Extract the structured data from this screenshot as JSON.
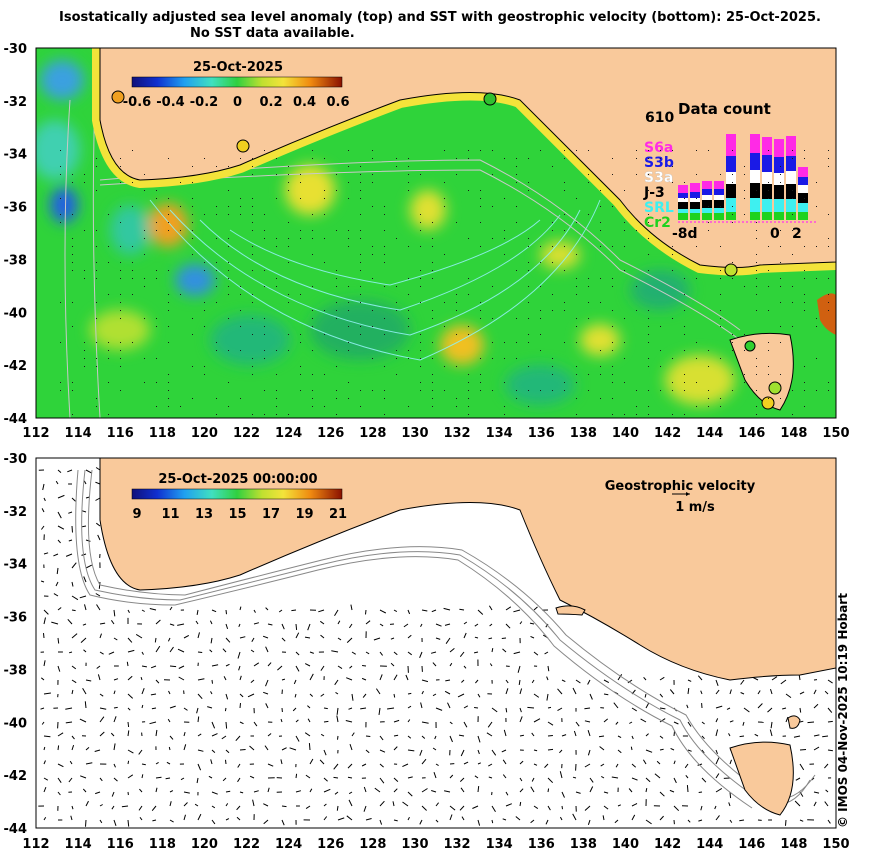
{
  "title": {
    "line1": "Isostatically adjusted sea level anomaly (top) and SST with geostrophic velocity (bottom): 25-Oct-2025.",
    "line2": "No SST data available."
  },
  "top_panel": {
    "colorbar_title": "25-Oct-2025",
    "colorbar_ticks": [
      "-0.6",
      "-0.4",
      "-0.2",
      "0",
      "0.2",
      "0.4",
      "0.6"
    ],
    "colorbar_range": [
      -0.6,
      0.6
    ],
    "colors": {
      "land": "#f9c99b",
      "ocean_mid": "#2fd33a",
      "coast_band": "#f3e33a"
    }
  },
  "inset": {
    "title": "Data count",
    "max_label": "610",
    "x_start_label": "-8d",
    "x_zero_label": "0",
    "x_end_label": "2",
    "missions": [
      {
        "name": "S6a",
        "color": "#ff2ae6"
      },
      {
        "name": "S3b",
        "color": "#1a1ae6"
      },
      {
        "name": "S3a",
        "color": "#ffffff"
      },
      {
        "name": "J-3",
        "color": "#000000"
      },
      {
        "name": "SRL",
        "color": "#3ef0f0"
      },
      {
        "name": "Cr2",
        "color": "#1ed21e"
      }
    ],
    "bars": [
      [
        0.08,
        0.05,
        0.04,
        0.07,
        0.04,
        0.07
      ],
      [
        0.09,
        0.06,
        0.04,
        0.07,
        0.04,
        0.07
      ],
      [
        0.08,
        0.06,
        0.05,
        0.08,
        0.05,
        0.07
      ],
      [
        0.08,
        0.06,
        0.05,
        0.08,
        0.05,
        0.07
      ],
      [
        0.22,
        0.16,
        0.12,
        0.14,
        0.14,
        0.08
      ],
      [
        0.0,
        0.0,
        0.0,
        0.0,
        0.0,
        0.0
      ],
      [
        0.19,
        0.17,
        0.13,
        0.15,
        0.14,
        0.08
      ],
      [
        0.18,
        0.17,
        0.12,
        0.15,
        0.13,
        0.08
      ],
      [
        0.18,
        0.16,
        0.12,
        0.14,
        0.13,
        0.08
      ],
      [
        0.2,
        0.15,
        0.13,
        0.15,
        0.13,
        0.08
      ],
      [
        0.1,
        0.08,
        0.08,
        0.1,
        0.09,
        0.08
      ]
    ]
  },
  "bottom_panel": {
    "colorbar_title": "25-Oct-2025 00:00:00",
    "colorbar_ticks": [
      "9",
      "11",
      "13",
      "15",
      "17",
      "19",
      "21"
    ],
    "colorbar_range": [
      9,
      21
    ],
    "velocity_legend_title": "Geostrophic velocity",
    "velocity_legend_scale": "1 m/s"
  },
  "axes": {
    "lon_ticks": [
      "112",
      "114",
      "116",
      "118",
      "120",
      "122",
      "124",
      "126",
      "128",
      "130",
      "132",
      "134",
      "136",
      "138",
      "140",
      "142",
      "144",
      "146",
      "148",
      "150"
    ],
    "lat_ticks": [
      "-30",
      "-32",
      "-34",
      "-36",
      "-38",
      "-40",
      "-42",
      "-44"
    ],
    "lon_range": [
      112,
      150
    ],
    "lat_range": [
      -44,
      -30
    ]
  },
  "credit": "© IMOS 04-Nov-2025 10:19 Hobart"
}
